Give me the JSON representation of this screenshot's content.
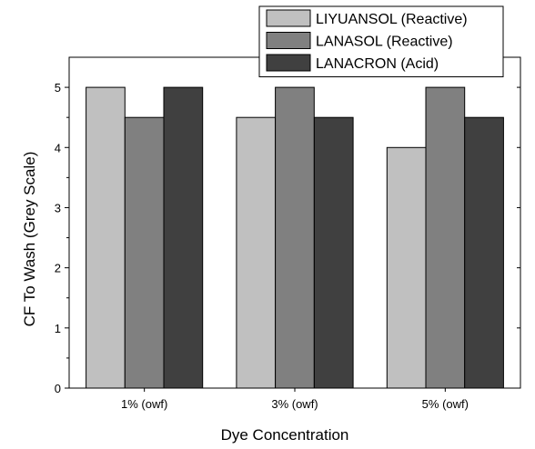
{
  "chart_data": {
    "type": "bar",
    "xlabel": "Dye Concentration",
    "ylabel": "CF To Wash (Grey Scale)",
    "categories": [
      "1% (owf)",
      "3% (owf)",
      "5% (owf)"
    ],
    "ylim": [
      0,
      5.5
    ],
    "yticks": [
      0,
      1,
      2,
      3,
      4,
      5
    ],
    "series": [
      {
        "name": "LIYUANSOL (Reactive)",
        "color": "#c0c0c0",
        "values": [
          5,
          4.5,
          4
        ]
      },
      {
        "name": "LANASOL (Reactive)",
        "color": "#808080",
        "values": [
          4.5,
          5,
          5
        ]
      },
      {
        "name": "LANACRON (Acid)",
        "color": "#404040",
        "values": [
          5,
          4.5,
          4.5
        ]
      }
    ],
    "legend_position": "top-right",
    "grid": false
  }
}
